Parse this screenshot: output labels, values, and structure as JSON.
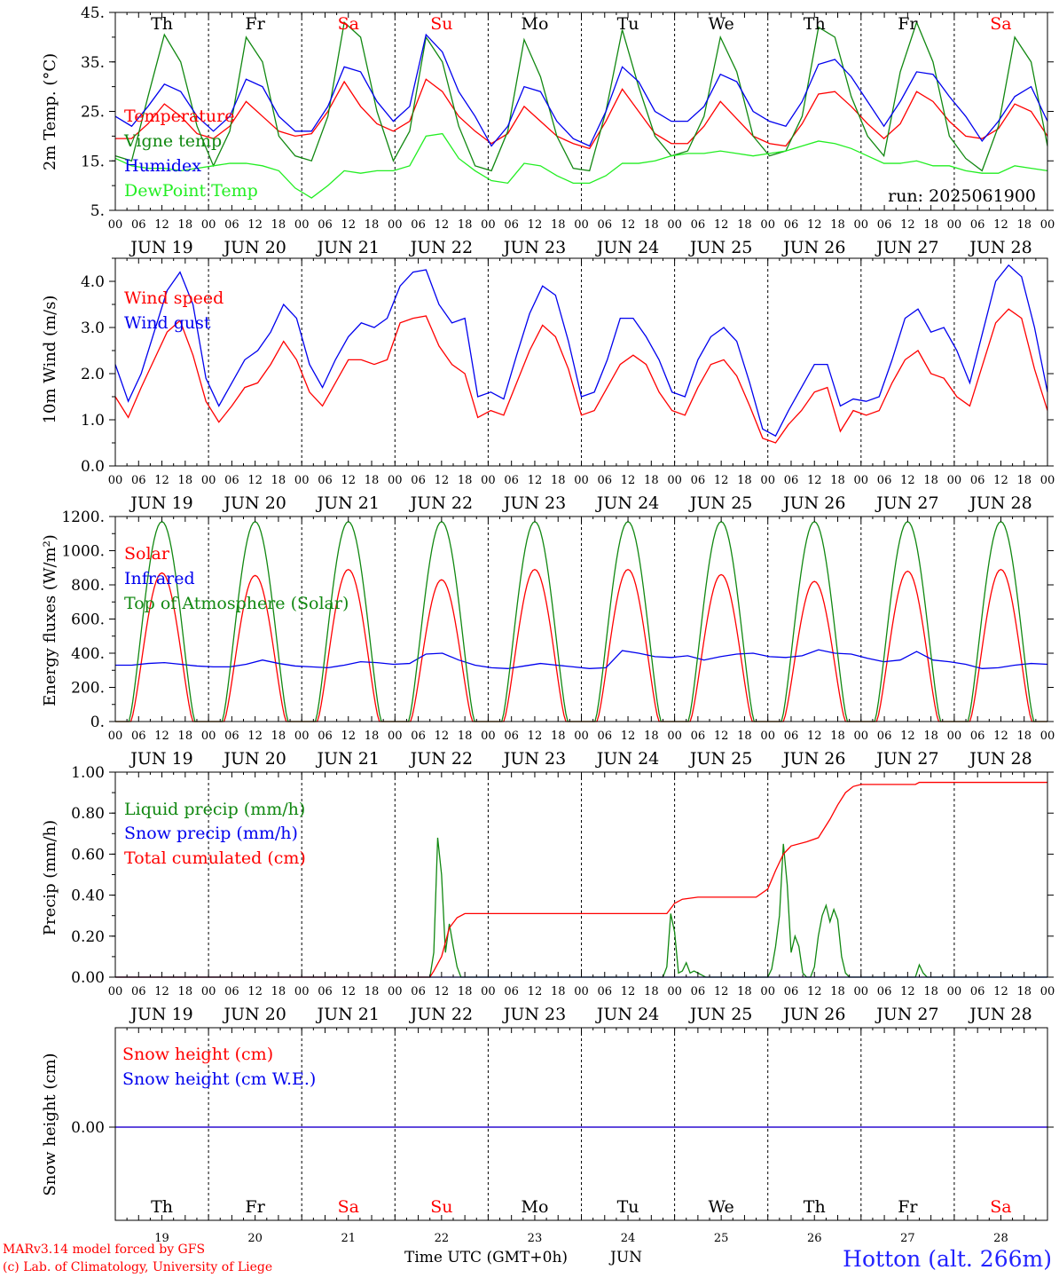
{
  "colors": {
    "red": "#ff0000",
    "dark_green": "#118811",
    "blue": "#0000ee",
    "light_green": "#22ee22",
    "black": "#000000"
  },
  "x_axis": {
    "hour_ticks": [
      "00",
      "06",
      "12",
      "18"
    ],
    "date_labels": [
      "JUN 19",
      "JUN 20",
      "JUN 21",
      "JUN 22",
      "JUN 23",
      "JUN 24",
      "JUN 25",
      "JUN 26",
      "JUN 27",
      "JUN 28"
    ],
    "end_tick": "00",
    "weekdays": [
      {
        "label": "Th",
        "weekend": false
      },
      {
        "label": "Fr",
        "weekend": false
      },
      {
        "label": "Sa",
        "weekend": true
      },
      {
        "label": "Su",
        "weekend": true
      },
      {
        "label": "Mo",
        "weekend": false
      },
      {
        "label": "Tu",
        "weekend": false
      },
      {
        "label": "We",
        "weekend": false
      },
      {
        "label": "Th",
        "weekend": false
      },
      {
        "label": "Fr",
        "weekend": false
      },
      {
        "label": "Sa",
        "weekend": true
      }
    ],
    "day_numbers": [
      "19",
      "20",
      "21",
      "22",
      "23",
      "24",
      "25",
      "26",
      "27",
      "28"
    ],
    "xlabel": "Time UTC (GMT+0h)",
    "month": "JUN"
  },
  "footer": {
    "credit1": "MARv3.14 model forced by GFS",
    "credit2": "(c) Lab. of Climatology, University of Liege",
    "station": "Hotton (alt. 266m)"
  },
  "chart_data": [
    {
      "type": "line",
      "ylabel": "2m Temp. (°C)",
      "ylim": [
        5,
        45
      ],
      "yticks": [
        "45.",
        "35.",
        "25.",
        "15.",
        "5."
      ],
      "ytick_values": [
        45,
        35,
        25,
        15,
        5
      ],
      "annotation": "run: 2025061900",
      "series": [
        {
          "name": "Temperature",
          "color": "red",
          "values": [
            19.5,
            19.5,
            22.5,
            26.5,
            24,
            20.5,
            19.5,
            22,
            27,
            24,
            21,
            20,
            20.5,
            25,
            31,
            26,
            22.5,
            21,
            23,
            31.5,
            29,
            24,
            21,
            18.5,
            20.5,
            26,
            23,
            20,
            18.5,
            17.5,
            23,
            29.5,
            25,
            20.5,
            18.5,
            18.5,
            22,
            27,
            23.5,
            20,
            18.5,
            18,
            22.5,
            28.5,
            29,
            26,
            22.5,
            19.5,
            22.5,
            29,
            27,
            23,
            20,
            19.5,
            21.5,
            26.5,
            25,
            20
          ]
        },
        {
          "name": "Vigne temp",
          "color": "dark_green",
          "values": [
            16,
            15,
            28,
            40.5,
            35,
            22,
            14,
            21,
            40,
            35,
            20,
            16,
            15,
            24,
            43,
            40,
            25,
            15,
            21,
            40,
            35,
            22,
            14,
            13,
            21,
            39.5,
            32,
            20,
            13.5,
            13,
            25,
            41.5,
            30,
            20,
            16,
            17,
            24,
            40,
            33,
            20,
            16,
            17,
            24,
            42,
            40,
            28,
            20,
            16,
            33,
            43,
            35,
            20,
            15.5,
            13,
            22,
            40,
            35,
            18
          ]
        },
        {
          "name": "Humidex",
          "color": "blue",
          "values": [
            24,
            22,
            26,
            30.5,
            29,
            24,
            21,
            24,
            31.5,
            30,
            24,
            21,
            21,
            26,
            34,
            33,
            27,
            23,
            26,
            40.5,
            37,
            29,
            24,
            18,
            22,
            30,
            29,
            23,
            19.5,
            18,
            25,
            34,
            31,
            25,
            23,
            23,
            26,
            32.5,
            31,
            25,
            23,
            22,
            27,
            34.5,
            35.5,
            32,
            27,
            22,
            27,
            33,
            32.5,
            28,
            24,
            19,
            23,
            28,
            30,
            23
          ]
        },
        {
          "name": "DewPoint Temp",
          "color": "light_green",
          "values": [
            15.5,
            14,
            13.5,
            13.5,
            13,
            13.5,
            14,
            14.5,
            14.5,
            14,
            13,
            9.5,
            7.5,
            10,
            13,
            12.5,
            13,
            13,
            14,
            20,
            20.5,
            15.5,
            13,
            11,
            10.5,
            14.5,
            14,
            12,
            10.5,
            10.5,
            12,
            14.5,
            14.5,
            15,
            16,
            16.5,
            16.5,
            17,
            16.5,
            16,
            16.5,
            17,
            18,
            19,
            18.5,
            17.5,
            16,
            14.5,
            14.5,
            15,
            14,
            14,
            13,
            12.5,
            12.5,
            14,
            13.5,
            13
          ]
        }
      ]
    },
    {
      "type": "line",
      "ylabel": "10m Wind (m/s)",
      "ylim": [
        0,
        4.5
      ],
      "yticks": [
        "4.0",
        "3.0",
        "2.0",
        "1.0",
        "0.0"
      ],
      "ytick_values": [
        4,
        3,
        2,
        1,
        0
      ],
      "series": [
        {
          "name": "Wind speed",
          "color": "red",
          "values": [
            1.5,
            1.05,
            1.7,
            2.3,
            2.9,
            3.15,
            2.4,
            1.4,
            0.95,
            1.3,
            1.7,
            1.8,
            2.2,
            2.7,
            2.3,
            1.6,
            1.3,
            1.8,
            2.3,
            2.3,
            2.2,
            2.3,
            3.1,
            3.2,
            3.25,
            2.6,
            2.2,
            2,
            1.05,
            1.2,
            1.1,
            1.8,
            2.5,
            3.05,
            2.8,
            2.1,
            1.1,
            1.2,
            1.7,
            2.2,
            2.4,
            2.2,
            1.6,
            1.2,
            1.1,
            1.7,
            2.2,
            2.3,
            1.95,
            1.3,
            0.6,
            0.5,
            0.9,
            1.2,
            1.6,
            1.7,
            0.75,
            1.2,
            1.1,
            1.2,
            1.8,
            2.3,
            2.5,
            2,
            1.9,
            1.5,
            1.3,
            2.2,
            3.1,
            3.4,
            3.2,
            2.1,
            1.2
          ]
        },
        {
          "name": "Wind gust",
          "color": "blue",
          "values": [
            2.2,
            1.4,
            2,
            2.9,
            3.8,
            4.2,
            3.5,
            1.9,
            1.3,
            1.8,
            2.3,
            2.5,
            2.9,
            3.5,
            3.2,
            2.2,
            1.7,
            2.3,
            2.8,
            3.1,
            3,
            3.2,
            3.9,
            4.2,
            4.25,
            3.5,
            3.1,
            3.2,
            1.5,
            1.6,
            1.45,
            2.4,
            3.3,
            3.9,
            3.7,
            2.7,
            1.5,
            1.6,
            2.3,
            3.2,
            3.2,
            2.8,
            2.3,
            1.6,
            1.5,
            2.3,
            2.8,
            3,
            2.7,
            1.8,
            0.8,
            0.65,
            1.2,
            1.7,
            2.2,
            2.2,
            1.3,
            1.45,
            1.4,
            1.5,
            2.3,
            3.2,
            3.4,
            2.9,
            3,
            2.5,
            1.8,
            2.9,
            4,
            4.35,
            4.1,
            3,
            1.6
          ]
        }
      ]
    },
    {
      "type": "line",
      "ylabel": "Energy fluxes (W/m²)",
      "ylim": [
        0,
        1200
      ],
      "yticks": [
        "1200.",
        "1000.",
        "800.",
        "600.",
        "400.",
        "200.",
        "0."
      ],
      "ytick_values": [
        1200,
        1000,
        800,
        600,
        400,
        200,
        0
      ],
      "series": [
        {
          "name": "Solar",
          "color": "red",
          "days_peak": [
            870,
            855,
            890,
            830,
            890,
            890,
            860,
            820,
            880,
            890
          ]
        },
        {
          "name": "Infrared",
          "color": "blue",
          "values": [
            330,
            330,
            340,
            345,
            335,
            325,
            320,
            320,
            335,
            360,
            340,
            325,
            320,
            315,
            330,
            350,
            345,
            335,
            340,
            395,
            400,
            360,
            330,
            315,
            310,
            325,
            340,
            330,
            320,
            310,
            315,
            415,
            400,
            380,
            375,
            385,
            360,
            380,
            395,
            400,
            380,
            375,
            385,
            420,
            400,
            395,
            370,
            350,
            360,
            410,
            360,
            350,
            335,
            310,
            315,
            330,
            340,
            335
          ]
        },
        {
          "name": "Top of Atmosphere (Solar)",
          "color": "dark_green",
          "peak": 1170
        }
      ]
    },
    {
      "type": "line",
      "ylabel": "Precip (mm/h)",
      "ylim": [
        0,
        1
      ],
      "yticks": [
        "1.00",
        "0.80",
        "0.60",
        "0.40",
        "0.20",
        "0.00"
      ],
      "ytick_values": [
        1,
        0.8,
        0.6,
        0.4,
        0.2,
        0
      ],
      "series": [
        {
          "name": "Liquid precip (mm/h)",
          "color": "dark_green",
          "points": [
            [
              0,
              0
            ],
            [
              81,
              0
            ],
            [
              82,
              0.12
            ],
            [
              83,
              0.68
            ],
            [
              84,
              0.5
            ],
            [
              85,
              0.12
            ],
            [
              86,
              0.26
            ],
            [
              87,
              0.15
            ],
            [
              88,
              0.05
            ],
            [
              89,
              0
            ],
            [
              141,
              0
            ],
            [
              142,
              0.05
            ],
            [
              143,
              0.31
            ],
            [
              144,
              0.22
            ],
            [
              145,
              0.02
            ],
            [
              146,
              0.03
            ],
            [
              147,
              0.07
            ],
            [
              148,
              0.02
            ],
            [
              149,
              0.03
            ],
            [
              150,
              0.02
            ],
            [
              151,
              0.01
            ],
            [
              152,
              0
            ],
            [
              168,
              0
            ],
            [
              169,
              0.04
            ],
            [
              170,
              0.15
            ],
            [
              171,
              0.3
            ],
            [
              172,
              0.65
            ],
            [
              173,
              0.45
            ],
            [
              174,
              0.12
            ],
            [
              175,
              0.2
            ],
            [
              176,
              0.15
            ],
            [
              177,
              0.02
            ],
            [
              178,
              0
            ],
            [
              179,
              0
            ],
            [
              180,
              0.05
            ],
            [
              181,
              0.2
            ],
            [
              182,
              0.3
            ],
            [
              183,
              0.35
            ],
            [
              184,
              0.27
            ],
            [
              185,
              0.33
            ],
            [
              186,
              0.28
            ],
            [
              187,
              0.1
            ],
            [
              188,
              0.02
            ],
            [
              189,
              0
            ],
            [
              206,
              0
            ],
            [
              207,
              0.06
            ],
            [
              208,
              0.02
            ],
            [
              209,
              0
            ],
            [
              240,
              0
            ]
          ]
        },
        {
          "name": "Snow precip (mm/h)",
          "color": "blue",
          "points": [
            [
              0,
              0
            ],
            [
              240,
              0
            ]
          ]
        },
        {
          "name": "Total cumulated (cm)",
          "color": "red",
          "points": [
            [
              0,
              0
            ],
            [
              81,
              0
            ],
            [
              82,
              0.03
            ],
            [
              84,
              0.1
            ],
            [
              86,
              0.24
            ],
            [
              88,
              0.29
            ],
            [
              90,
              0.31
            ],
            [
              142,
              0.31
            ],
            [
              144,
              0.36
            ],
            [
              146,
              0.38
            ],
            [
              150,
              0.39
            ],
            [
              165,
              0.39
            ],
            [
              168,
              0.43
            ],
            [
              170,
              0.52
            ],
            [
              172,
              0.6
            ],
            [
              174,
              0.64
            ],
            [
              178,
              0.66
            ],
            [
              181,
              0.68
            ],
            [
              184,
              0.77
            ],
            [
              186,
              0.84
            ],
            [
              188,
              0.9
            ],
            [
              190,
              0.93
            ],
            [
              192,
              0.94
            ],
            [
              206,
              0.94
            ],
            [
              207,
              0.95
            ],
            [
              240,
              0.95
            ]
          ]
        }
      ]
    },
    {
      "type": "line",
      "ylabel": "Snow height (cm)",
      "yticks": [
        "0.00"
      ],
      "ytick_values": [
        0
      ],
      "series": [
        {
          "name": "Snow height (cm)",
          "color": "red",
          "points": [
            [
              0,
              0
            ],
            [
              240,
              0
            ]
          ]
        },
        {
          "name": "Snow height (cm W.E.)",
          "color": "blue",
          "points": [
            [
              0,
              0
            ],
            [
              240,
              0
            ]
          ]
        }
      ]
    }
  ]
}
